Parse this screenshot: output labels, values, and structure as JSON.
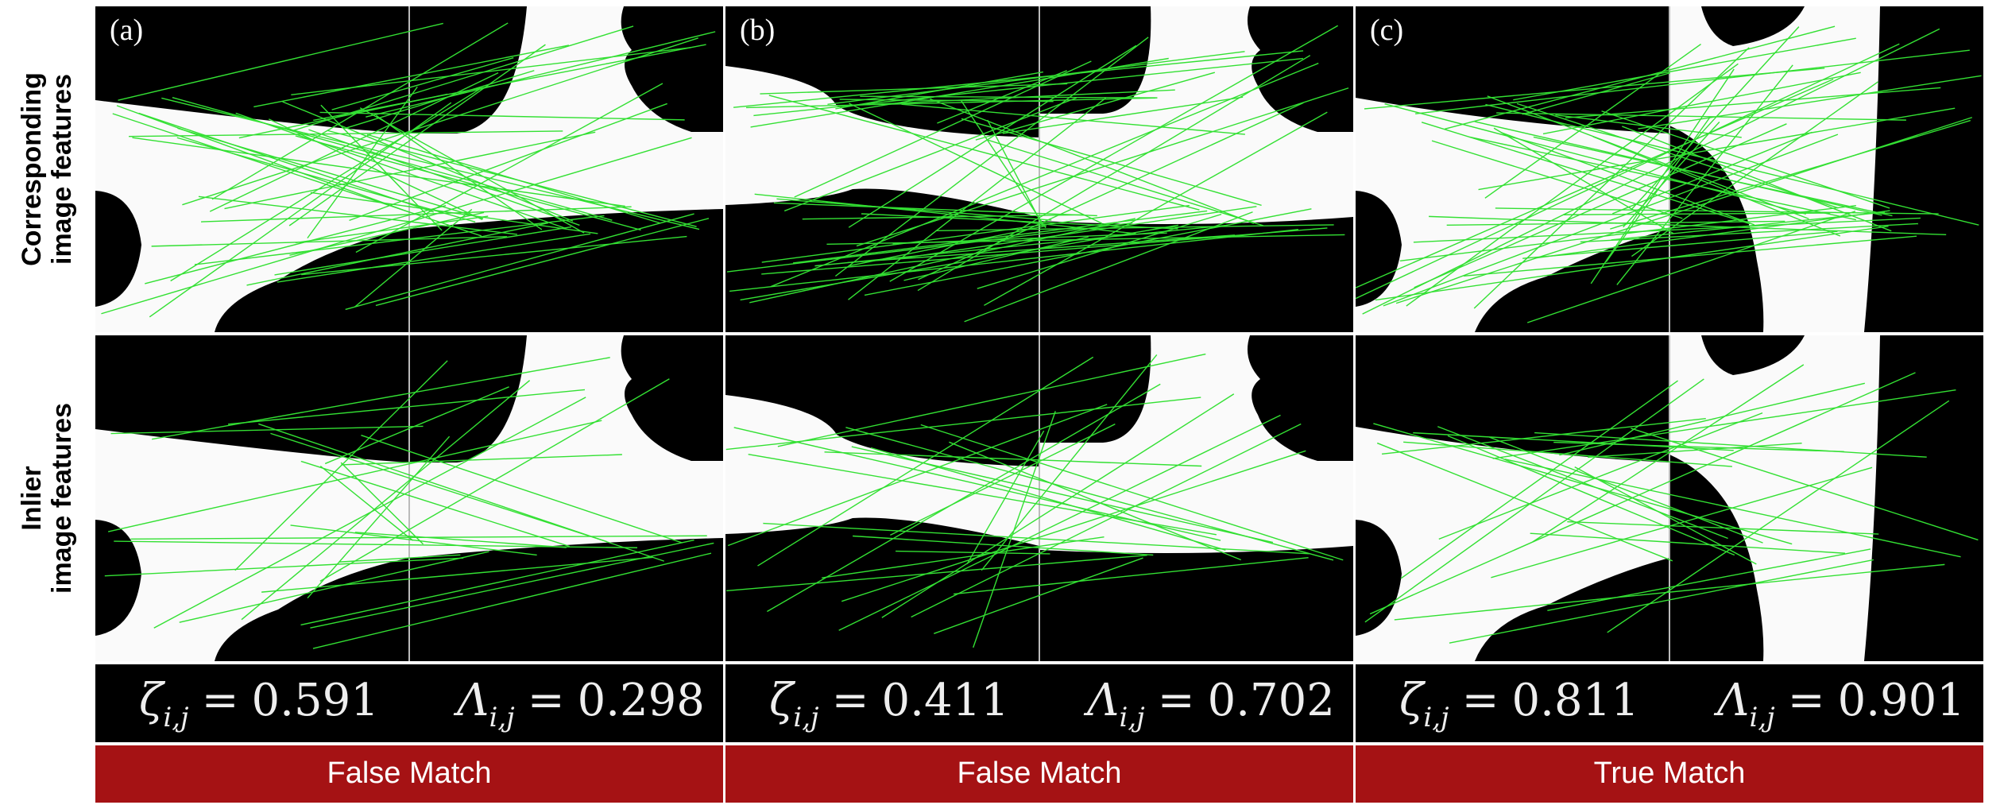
{
  "row_labels": [
    {
      "lines": [
        "Corresponding",
        "image features"
      ]
    },
    {
      "lines": [
        "Inlier",
        "image features"
      ]
    }
  ],
  "panels": [
    {
      "label": "(a)",
      "metrics": [
        {
          "symbol": "ζ",
          "subscript": "i,j",
          "relation": "=",
          "value": "0.591"
        },
        {
          "symbol": "Λ",
          "subscript": "i,j",
          "relation": "=",
          "value": "0.298"
        }
      ],
      "result": "False Match"
    },
    {
      "label": "(b)",
      "metrics": [
        {
          "symbol": "ζ",
          "subscript": "i,j",
          "relation": "=",
          "value": "0.411"
        },
        {
          "symbol": "Λ",
          "subscript": "i,j",
          "relation": "=",
          "value": "0.702"
        }
      ],
      "result": "False Match"
    },
    {
      "label": "(c)",
      "metrics": [
        {
          "symbol": "ζ",
          "subscript": "i,j",
          "relation": "=",
          "value": "0.811"
        },
        {
          "symbol": "Λ",
          "subscript": "i,j",
          "relation": "=",
          "value": "0.901"
        }
      ],
      "result": "True Match"
    }
  ]
}
